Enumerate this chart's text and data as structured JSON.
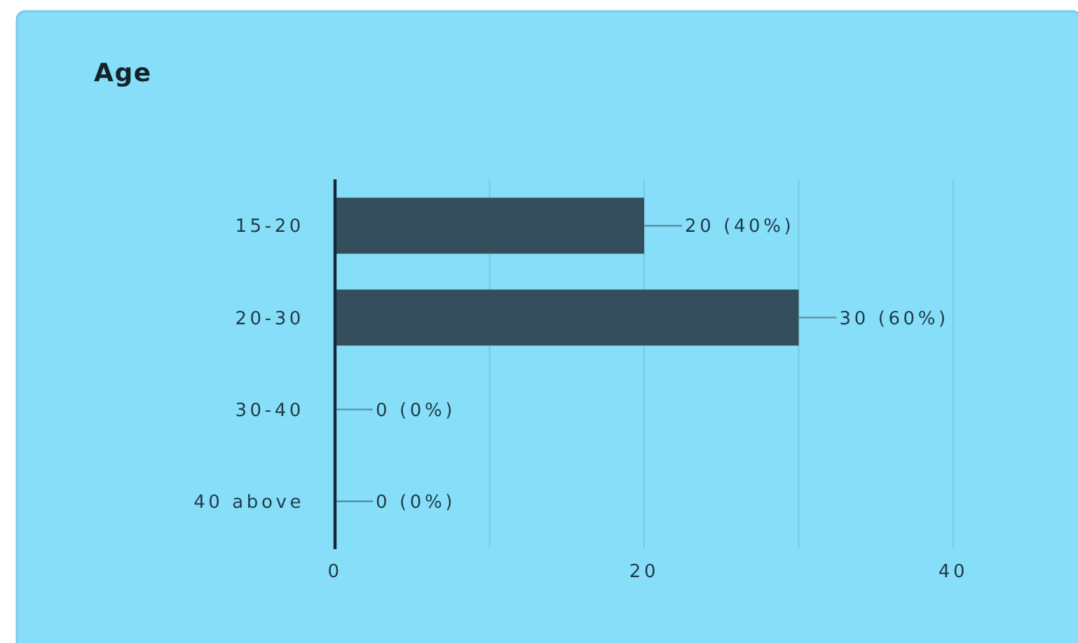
{
  "chart_data": {
    "type": "bar",
    "title": "Age",
    "orientation": "horizontal",
    "categories": [
      "15-20",
      "20-30",
      "30-40",
      "40 above"
    ],
    "values": [
      20,
      30,
      0,
      0
    ],
    "color": "#344f5b",
    "value_labels": [
      "20 (40%)",
      "30 (60%)",
      "0 (0%)",
      "0 (0%)"
    ],
    "xlim": [
      0,
      40
    ],
    "xticks": [
      0,
      {
        "value": 10,
        "label": null
      },
      20,
      {
        "value": 30,
        "label": null
      },
      40
    ],
    "grid": "x"
  }
}
